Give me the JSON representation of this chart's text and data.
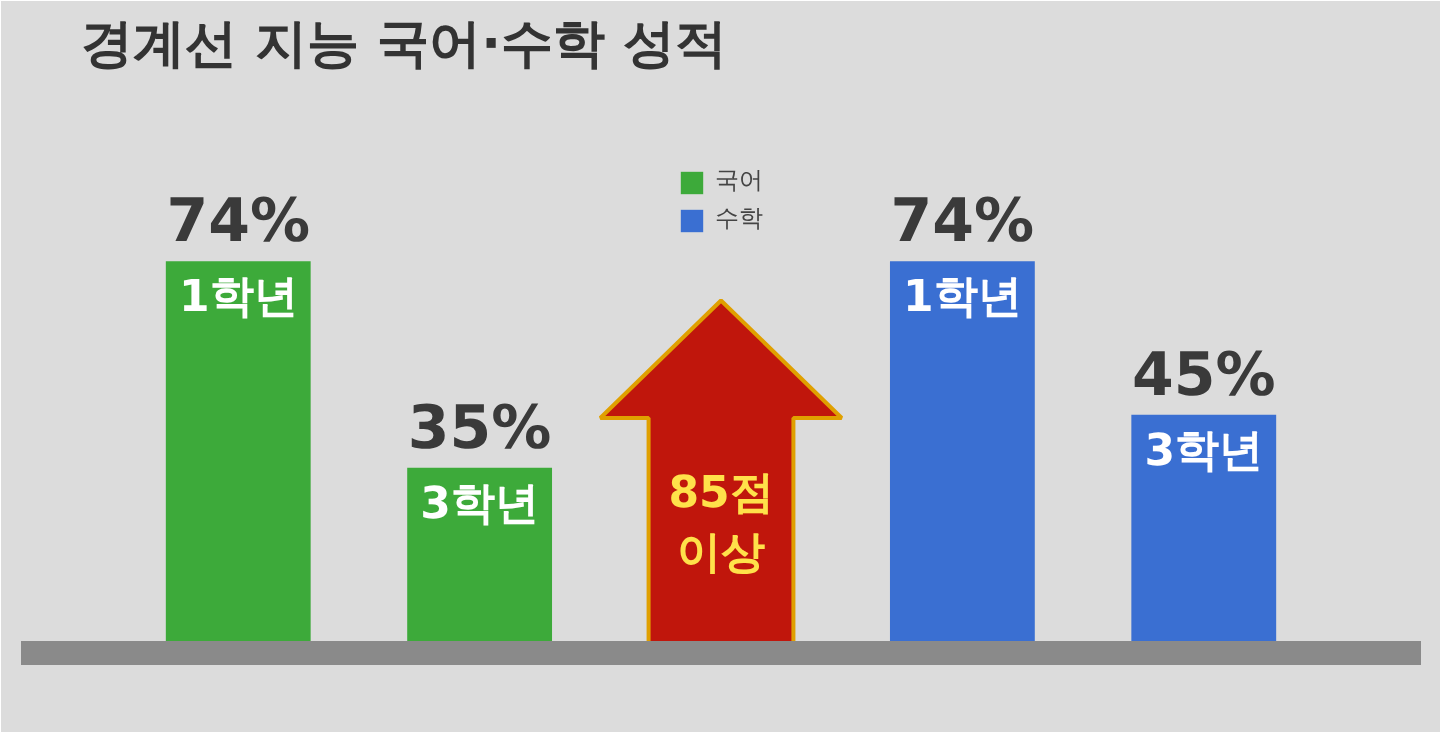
{
  "chart_data": {
    "type": "bar",
    "title": "경계선 지능 국어·수학 성적",
    "categories": [
      "1학년",
      "3학년",
      null,
      "1학년",
      "3학년"
    ],
    "series": [
      {
        "name": "국어",
        "color": "#3daa3a",
        "values": [
          74,
          35,
          null,
          null,
          null
        ],
        "value_labels": [
          "74%",
          "35%",
          null,
          null,
          null
        ]
      },
      {
        "name": "수학",
        "color": "#3a6fd2",
        "values": [
          null,
          null,
          null,
          74,
          45
        ],
        "value_labels": [
          null,
          null,
          null,
          "74%",
          "45%"
        ]
      }
    ],
    "legend": "top",
    "grid": false,
    "annotations": [
      "85점\n이상"
    ]
  }
}
